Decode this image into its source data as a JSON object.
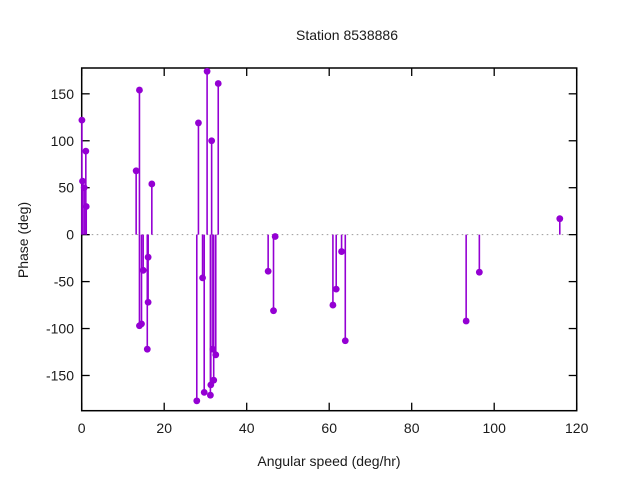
{
  "title": "Station 8538886",
  "chart_data": {
    "type": "scatter",
    "style": "impulses-with-points (stem plot, vertical lines from y=0 to each point, filled circle markers)",
    "title": "Station 8538886",
    "xlabel": "Angular speed (deg/hr)",
    "ylabel": "Phase (deg)",
    "xlim": [
      0,
      120
    ],
    "ylim": [
      -187.5,
      177.5
    ],
    "xticks": [
      0,
      20,
      40,
      60,
      80,
      100,
      120
    ],
    "yticks": [
      -150,
      -100,
      -50,
      0,
      50,
      100,
      150
    ],
    "grid": false,
    "legend": false,
    "zero_line": true,
    "zero_line_style": "gray dotted horizontal line at y=0",
    "marker": "filled-circle",
    "marker_color": "#9400d3",
    "stem_color": "#9400d3",
    "axis_color": "#000000",
    "zero_line_color": "#9b9b9b",
    "points": [
      [
        0.05,
        122
      ],
      [
        1.0,
        89
      ],
      [
        0.2,
        57
      ],
      [
        0.6,
        50
      ],
      [
        1.1,
        30
      ],
      [
        14.0,
        154
      ],
      [
        13.2,
        68
      ],
      [
        17.0,
        54
      ],
      [
        16.1,
        -24
      ],
      [
        14.9,
        -38
      ],
      [
        16.1,
        -72
      ],
      [
        14.0,
        -97
      ],
      [
        14.5,
        -95
      ],
      [
        15.9,
        -122
      ],
      [
        30.4,
        174
      ],
      [
        33.1,
        161
      ],
      [
        28.3,
        119
      ],
      [
        31.5,
        100
      ],
      [
        29.3,
        -46
      ],
      [
        31.8,
        -122
      ],
      [
        32.5,
        -128
      ],
      [
        32.0,
        -155
      ],
      [
        31.3,
        -160
      ],
      [
        29.7,
        -168
      ],
      [
        31.2,
        -171
      ],
      [
        27.9,
        -177
      ],
      [
        46.9,
        -2
      ],
      [
        45.2,
        -39
      ],
      [
        46.5,
        -81
      ],
      [
        63.0,
        -18
      ],
      [
        61.7,
        -58
      ],
      [
        60.9,
        -75
      ],
      [
        63.9,
        -113
      ],
      [
        93.2,
        -92
      ],
      [
        96.4,
        -40
      ],
      [
        115.9,
        17
      ]
    ]
  }
}
